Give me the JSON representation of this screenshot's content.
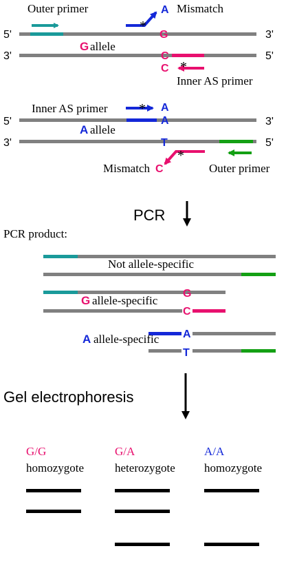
{
  "colors": {
    "strand": "#808080",
    "teal": "#1a9a9a",
    "blue": "#1428d8",
    "pink": "#e8106e",
    "green": "#14a014",
    "black": "#000000"
  },
  "panel_g": {
    "outer_primer": "Outer primer",
    "mismatch": "Mismatch",
    "inner_as_primer": "Inner AS primer",
    "allele_base": "G",
    "allele_word": "allele",
    "top_base": "G",
    "bottom_base": "C",
    "primer_base": "C",
    "mismatch_base": "A",
    "end_5_top": "5'",
    "end_3_top": "3'",
    "end_3_bottom": "3'",
    "end_5_bottom": "5'",
    "asterisk": "*"
  },
  "panel_a": {
    "inner_as_primer": "Inner AS primer",
    "mismatch": "Mismatch",
    "outer_primer": "Outer primer",
    "allele_base": "A",
    "allele_word": "allele",
    "top_base": "A",
    "bottom_base": "T",
    "primer_base": "A",
    "mismatch_base": "C",
    "end_5_top": "5'",
    "end_3_top": "3'",
    "end_3_bottom": "3'",
    "end_5_bottom": "5'",
    "asterisk": "*"
  },
  "pcr_label": "PCR",
  "pcr_product_label": "PCR product:",
  "products": {
    "not_specific": "Not allele-specific",
    "g_specific_base": "G",
    "g_specific_text": "allele-specific",
    "g_top_base": "G",
    "g_bottom_base": "C",
    "a_specific_base": "A",
    "a_specific_text": "allele-specific",
    "a_top_base": "A",
    "a_bottom_base": "T"
  },
  "gel_label": "Gel electrophoresis",
  "genotypes": [
    {
      "genotype": "G/G",
      "type": "homozygote",
      "bands": [
        "long",
        "mid"
      ]
    },
    {
      "genotype": "G/A",
      "type": "heterozygote",
      "bands": [
        "long",
        "mid",
        "short"
      ]
    },
    {
      "genotype": "A/A",
      "type": "homozygote",
      "bands": [
        "long",
        "short"
      ]
    }
  ]
}
